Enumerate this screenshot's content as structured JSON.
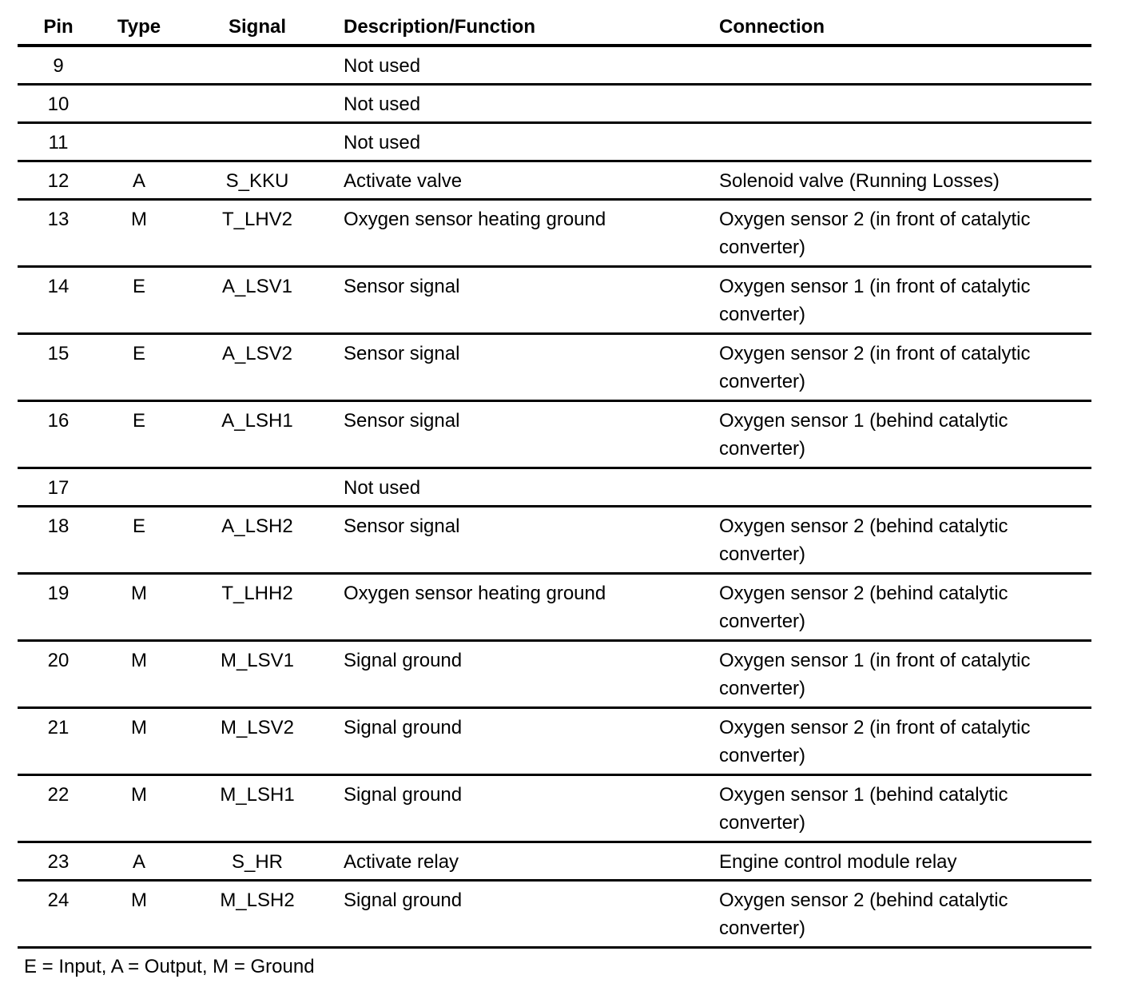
{
  "headers": {
    "pin": "Pin",
    "type": "Type",
    "signal": "Signal",
    "description": "Description/Function",
    "connection": "Connection"
  },
  "rows": [
    {
      "pin": "9",
      "type": "",
      "signal": "",
      "description": "Not used",
      "connection": ""
    },
    {
      "pin": "10",
      "type": "",
      "signal": "",
      "description": "Not used",
      "connection": ""
    },
    {
      "pin": "11",
      "type": "",
      "signal": "",
      "description": "Not used",
      "connection": ""
    },
    {
      "pin": "12",
      "type": "A",
      "signal": "S_KKU",
      "description": "Activate valve",
      "connection": "Solenoid valve (Running Losses)"
    },
    {
      "pin": "13",
      "type": "M",
      "signal": "T_LHV2",
      "description": "Oxygen sensor heating ground",
      "connection": "Oxygen sensor 2 (in front of catalytic converter)"
    },
    {
      "pin": "14",
      "type": "E",
      "signal": "A_LSV1",
      "description": "Sensor signal",
      "connection": "Oxygen sensor 1 (in front of catalytic converter)"
    },
    {
      "pin": "15",
      "type": "E",
      "signal": "A_LSV2",
      "description": "Sensor signal",
      "connection": "Oxygen sensor 2 (in front of catalytic converter)"
    },
    {
      "pin": "16",
      "type": "E",
      "signal": "A_LSH1",
      "description": "Sensor signal",
      "connection": "Oxygen sensor 1 (behind catalytic converter)"
    },
    {
      "pin": "17",
      "type": "",
      "signal": "",
      "description": "Not used",
      "connection": ""
    },
    {
      "pin": "18",
      "type": "E",
      "signal": "A_LSH2",
      "description": "Sensor signal",
      "connection": "Oxygen sensor 2 (behind catalytic converter)"
    },
    {
      "pin": "19",
      "type": "M",
      "signal": "T_LHH2",
      "description": "Oxygen sensor heating ground",
      "connection": "Oxygen sensor 2 (behind catalytic converter)"
    },
    {
      "pin": "20",
      "type": "M",
      "signal": "M_LSV1",
      "description": "Signal ground",
      "connection": "Oxygen sensor 1 (in front of catalytic converter)"
    },
    {
      "pin": "21",
      "type": "M",
      "signal": "M_LSV2",
      "description": "Signal ground",
      "connection": "Oxygen sensor 2 (in front of catalytic converter)"
    },
    {
      "pin": "22",
      "type": "M",
      "signal": "M_LSH1",
      "description": "Signal ground",
      "connection": "Oxygen sensor 1 (behind catalytic converter)"
    },
    {
      "pin": "23",
      "type": "A",
      "signal": "S_HR",
      "description": "Activate relay",
      "connection": "Engine control module relay"
    },
    {
      "pin": "24",
      "type": "M",
      "signal": "M_LSH2",
      "description": "Signal ground",
      "connection": "Oxygen sensor 2 (behind catalytic converter)"
    }
  ],
  "legend": "E = Input, A = Output, M = Ground"
}
